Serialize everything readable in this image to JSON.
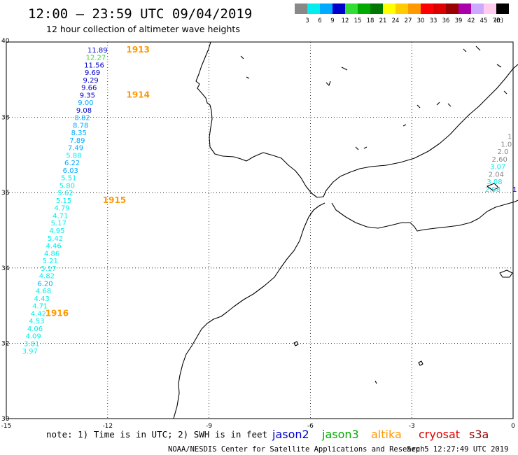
{
  "header": {
    "title": "12:00 – 23:59 UTC 09/04/2019",
    "subtitle": "12 hour collection of altimeter wave heights"
  },
  "colorbar": {
    "unit": "(ft)",
    "ticks": [
      "3",
      "6",
      "9",
      "12",
      "15",
      "18",
      "21",
      "24",
      "27",
      "30",
      "33",
      "36",
      "39",
      "42",
      "45",
      "70"
    ],
    "colors": [
      "#888888",
      "#00eeee",
      "#00aaff",
      "#0000cc",
      "#33dd33",
      "#00aa00",
      "#007700",
      "#ffff00",
      "#ffcc00",
      "#ff9900",
      "#ff0000",
      "#dd0000",
      "#990000",
      "#aa00aa",
      "#ccaaff",
      "#ffccee",
      "#000000"
    ]
  },
  "footer": {
    "note": "note:  1) Time is in UTC;  2) SWH is in feet",
    "credit": "NOAA/NESDIS Center for Satellite Applications and Research",
    "timestamp": "Sep  5 12:27:49 UTC 2019"
  },
  "legend": [
    {
      "name": "jason2",
      "color": "#0000cc"
    },
    {
      "name": "jason3",
      "color": "#00aa00"
    },
    {
      "name": "altika",
      "color": "#ff9900"
    },
    {
      "name": "cryosat",
      "color": "#dd0000"
    },
    {
      "name": "s3a",
      "color": "#990000"
    }
  ],
  "chart_data": {
    "type": "scatter",
    "title": "12:00 – 23:59 UTC 09/04/2019",
    "subtitle": "12 hour collection of altimeter wave heights",
    "xlim": [
      -15,
      0
    ],
    "ylim": [
      30,
      40
    ],
    "x_ticks": [
      "-15",
      "-12",
      "-9",
      "-6",
      "-3",
      "0"
    ],
    "y_ticks": [
      "30",
      "32",
      "34",
      "36",
      "38",
      "40"
    ],
    "grid": true,
    "track_points": [
      {
        "lon": -12.3,
        "lat": 39.8,
        "value": "11.89",
        "color": "#0000cc"
      },
      {
        "lon": -12.35,
        "lat": 39.6,
        "value": "12.27",
        "color": "#33dd33"
      },
      {
        "lon": -12.4,
        "lat": 39.4,
        "value": "11.56",
        "color": "#0000cc"
      },
      {
        "lon": -12.45,
        "lat": 39.2,
        "value": "9.69",
        "color": "#0000cc"
      },
      {
        "lon": -12.5,
        "lat": 39.0,
        "value": "9.29",
        "color": "#0000cc"
      },
      {
        "lon": -12.55,
        "lat": 38.8,
        "value": "9.66",
        "color": "#0000cc"
      },
      {
        "lon": -12.6,
        "lat": 38.6,
        "value": "9.35",
        "color": "#0000cc"
      },
      {
        "lon": -12.65,
        "lat": 38.4,
        "value": "9.00",
        "color": "#00aaff"
      },
      {
        "lon": -12.7,
        "lat": 38.2,
        "value": "9.08",
        "color": "#0000cc"
      },
      {
        "lon": -12.75,
        "lat": 38.0,
        "value": "8.82",
        "color": "#00aaff"
      },
      {
        "lon": -12.8,
        "lat": 37.8,
        "value": "8.78",
        "color": "#00aaff"
      },
      {
        "lon": -12.85,
        "lat": 37.6,
        "value": "8.35",
        "color": "#00aaff"
      },
      {
        "lon": -12.9,
        "lat": 37.4,
        "value": "7.89",
        "color": "#00aaff"
      },
      {
        "lon": -12.95,
        "lat": 37.2,
        "value": "7.49",
        "color": "#00aaff"
      },
      {
        "lon": -13.0,
        "lat": 37.0,
        "value": "5.88",
        "color": "#00eeee"
      },
      {
        "lon": -13.05,
        "lat": 36.8,
        "value": "6.22",
        "color": "#00aaff"
      },
      {
        "lon": -13.1,
        "lat": 36.6,
        "value": "6.03",
        "color": "#00aaff"
      },
      {
        "lon": -13.15,
        "lat": 36.4,
        "value": "5.51",
        "color": "#00eeee"
      },
      {
        "lon": -13.2,
        "lat": 36.2,
        "value": "5.80",
        "color": "#00eeee"
      },
      {
        "lon": -13.25,
        "lat": 36.0,
        "value": "5.62",
        "color": "#00eeee"
      },
      {
        "lon": -13.3,
        "lat": 35.8,
        "value": "5.15",
        "color": "#00eeee"
      },
      {
        "lon": -13.35,
        "lat": 35.6,
        "value": "4.79",
        "color": "#00eeee"
      },
      {
        "lon": -13.4,
        "lat": 35.4,
        "value": "4.71",
        "color": "#00eeee"
      },
      {
        "lon": -13.45,
        "lat": 35.2,
        "value": "5.17",
        "color": "#00eeee"
      },
      {
        "lon": -13.5,
        "lat": 35.0,
        "value": "4.95",
        "color": "#00eeee"
      },
      {
        "lon": -13.55,
        "lat": 34.8,
        "value": "5.42",
        "color": "#00eeee"
      },
      {
        "lon": -13.6,
        "lat": 34.6,
        "value": "4.46",
        "color": "#00eeee"
      },
      {
        "lon": -13.65,
        "lat": 34.4,
        "value": "4.86",
        "color": "#00eeee"
      },
      {
        "lon": -13.7,
        "lat": 34.2,
        "value": "5.21",
        "color": "#00eeee"
      },
      {
        "lon": -13.75,
        "lat": 34.0,
        "value": "5.17",
        "color": "#00eeee"
      },
      {
        "lon": -13.8,
        "lat": 33.8,
        "value": "4.82",
        "color": "#00eeee"
      },
      {
        "lon": -13.85,
        "lat": 33.6,
        "value": "6.20",
        "color": "#00aaff"
      },
      {
        "lon": -13.9,
        "lat": 33.4,
        "value": "4.68",
        "color": "#00eeee"
      },
      {
        "lon": -13.95,
        "lat": 33.2,
        "value": "4.43",
        "color": "#00eeee"
      },
      {
        "lon": -14.0,
        "lat": 33.0,
        "value": "4.71",
        "color": "#00eeee"
      },
      {
        "lon": -14.05,
        "lat": 32.8,
        "value": "4.42",
        "color": "#00eeee"
      },
      {
        "lon": -14.1,
        "lat": 32.6,
        "value": "4.53",
        "color": "#00eeee"
      },
      {
        "lon": -14.15,
        "lat": 32.4,
        "value": "4.06",
        "color": "#00eeee"
      },
      {
        "lon": -14.2,
        "lat": 32.2,
        "value": "4.09",
        "color": "#00eeee"
      },
      {
        "lon": -14.25,
        "lat": 32.0,
        "value": "3.81",
        "color": "#00eeee"
      },
      {
        "lon": -14.3,
        "lat": 31.8,
        "value": "3.97",
        "color": "#00eeee"
      }
    ],
    "time_labels": [
      {
        "lon": -11.1,
        "lat": 39.8,
        "value": "1913",
        "color": "#ff9900"
      },
      {
        "lon": -11.1,
        "lat": 38.6,
        "value": "1914",
        "color": "#ff9900"
      },
      {
        "lon": -11.8,
        "lat": 35.8,
        "value": "1915",
        "color": "#ff9900"
      },
      {
        "lon": -13.5,
        "lat": 32.8,
        "value": "1916",
        "color": "#ff9900"
      }
    ],
    "edge_points": [
      {
        "lon": -0.1,
        "lat": 37.5,
        "value": "1",
        "color": "#888888"
      },
      {
        "lon": -0.2,
        "lat": 37.3,
        "value": "1.0",
        "color": "#888888"
      },
      {
        "lon": -0.3,
        "lat": 37.1,
        "value": "2.0",
        "color": "#888888"
      },
      {
        "lon": -0.4,
        "lat": 36.9,
        "value": "2.60",
        "color": "#888888"
      },
      {
        "lon": -0.45,
        "lat": 36.7,
        "value": "3.07",
        "color": "#00eeee"
      },
      {
        "lon": -0.5,
        "lat": 36.5,
        "value": "2.04",
        "color": "#888888"
      },
      {
        "lon": -0.55,
        "lat": 36.3,
        "value": "3.08",
        "color": "#00eeee"
      },
      {
        "lon": -0.6,
        "lat": 36.1,
        "value": "2.98",
        "color": "#00eeee"
      },
      {
        "lon": 0.05,
        "lat": 36.1,
        "value": "1",
        "color": "#0000cc"
      }
    ]
  }
}
